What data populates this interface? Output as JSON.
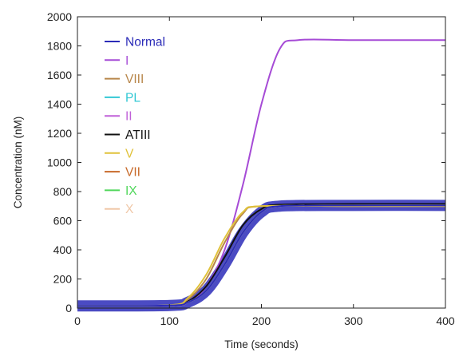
{
  "chart_data": {
    "type": "line",
    "title": "",
    "xlabel": "Time (seconds)",
    "ylabel": "Concentration (nM)",
    "xlim": [
      0,
      400
    ],
    "ylim": [
      0,
      2000
    ],
    "xticks": [
      0,
      100,
      200,
      300,
      400
    ],
    "yticks": [
      0,
      200,
      400,
      600,
      800,
      1000,
      1200,
      1400,
      1600,
      1800,
      2000
    ],
    "grid": false,
    "legend_position": "top-left",
    "series": [
      {
        "name": "Normal",
        "color": "#2b2bb8",
        "x": [
          0,
          100,
          120,
          140,
          160,
          180,
          200,
          220,
          300,
          400
        ],
        "y": [
          15,
          18,
          40,
          120,
          300,
          520,
          660,
          700,
          705,
          705
        ]
      },
      {
        "name": "I",
        "color": "#a64bd6",
        "x": [
          0,
          100,
          120,
          140,
          160,
          180,
          200,
          220,
          240,
          300,
          400
        ],
        "y": [
          15,
          18,
          40,
          150,
          400,
          850,
          1400,
          1780,
          1840,
          1840,
          1840
        ]
      },
      {
        "name": "VIII",
        "color": "#b8864a",
        "x": [
          0,
          100,
          120,
          140,
          160,
          180,
          200,
          300,
          400
        ],
        "y": [
          15,
          18,
          60,
          200,
          450,
          650,
          700,
          700,
          700
        ]
      },
      {
        "name": "PL",
        "color": "#33c8d4",
        "x": [
          0,
          100,
          120,
          140,
          160,
          180,
          200,
          220,
          300,
          400
        ],
        "y": [
          15,
          18,
          40,
          120,
          300,
          520,
          660,
          700,
          705,
          705
        ]
      },
      {
        "name": "II",
        "color": "#c060d8",
        "x": [
          0,
          100,
          120,
          140,
          160,
          180,
          200,
          220,
          300,
          400
        ],
        "y": [
          15,
          18,
          40,
          120,
          300,
          520,
          660,
          700,
          705,
          705
        ]
      },
      {
        "name": "ATIII",
        "color": "#111111",
        "x": [
          0,
          100,
          120,
          140,
          160,
          180,
          200,
          220,
          300,
          400
        ],
        "y": [
          15,
          18,
          45,
          150,
          350,
          570,
          680,
          710,
          715,
          715
        ]
      },
      {
        "name": "V",
        "color": "#e0c23a",
        "x": [
          0,
          100,
          120,
          140,
          160,
          180,
          200,
          300,
          400
        ],
        "y": [
          15,
          20,
          70,
          230,
          480,
          660,
          700,
          700,
          700
        ]
      },
      {
        "name": "VII",
        "color": "#c86a2a",
        "x": [
          0,
          100,
          120,
          140,
          160,
          180,
          200,
          220,
          300,
          400
        ],
        "y": [
          15,
          18,
          40,
          120,
          300,
          520,
          660,
          700,
          705,
          705
        ]
      },
      {
        "name": "IX",
        "color": "#4fd65a",
        "x": [
          0,
          100,
          120,
          140,
          160,
          180,
          200,
          220,
          300,
          400
        ],
        "y": [
          15,
          18,
          40,
          120,
          300,
          520,
          660,
          700,
          705,
          705
        ]
      },
      {
        "name": "X",
        "color": "#f0c8a8",
        "x": [
          0,
          100,
          120,
          140,
          160,
          180,
          200,
          220,
          300,
          400
        ],
        "y": [
          15,
          18,
          40,
          120,
          300,
          520,
          660,
          700,
          705,
          705
        ]
      }
    ]
  }
}
